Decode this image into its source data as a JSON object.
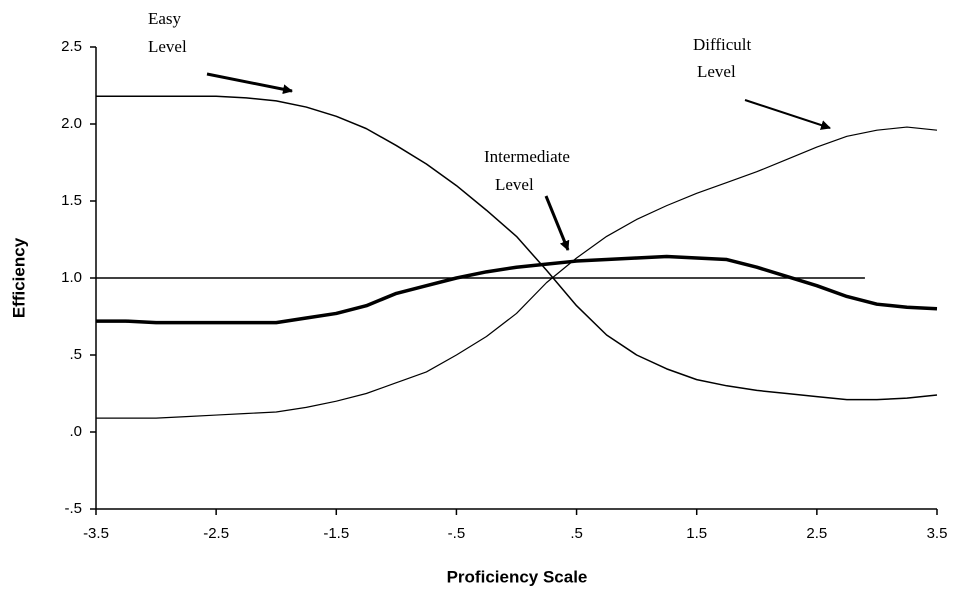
{
  "chart_data": {
    "type": "line",
    "x_label": "Proficiency Scale",
    "y_label": "Efficiency",
    "x": [
      -3.5,
      -3.25,
      -3,
      -2.75,
      -2.5,
      -2.25,
      -2,
      -1.75,
      -1.5,
      -1.25,
      -1,
      -0.75,
      -0.5,
      -0.25,
      0,
      0.25,
      0.5,
      0.75,
      1,
      1.25,
      1.5,
      1.75,
      2,
      2.25,
      2.5,
      2.75,
      3,
      3.25,
      3.5
    ],
    "series": [
      {
        "color": "#000",
        "width": 1.5,
        "values": [
          2.18,
          2.18,
          2.18,
          2.18,
          2.18,
          2.17,
          2.15,
          2.11,
          2.05,
          1.97,
          1.86,
          1.74,
          1.6,
          1.44,
          1.27,
          1.05,
          0.82,
          0.63,
          0.5,
          0.41,
          0.34,
          0.3,
          0.27,
          0.25,
          0.23,
          0.21,
          0.21,
          0.22,
          0.24
        ]
      },
      {
        "color": "#000",
        "width": 3.5,
        "values": [
          0.72,
          0.72,
          0.71,
          0.71,
          0.71,
          0.71,
          0.71,
          0.74,
          0.77,
          0.82,
          0.9,
          0.95,
          1.0,
          1.04,
          1.07,
          1.09,
          1.11,
          1.12,
          1.13,
          1.14,
          1.13,
          1.12,
          1.07,
          1.01,
          0.95,
          0.88,
          0.83,
          0.81,
          0.8
        ]
      },
      {
        "color": "#000",
        "width": 1.2,
        "values": [
          0.09,
          0.09,
          0.09,
          0.1,
          0.11,
          0.12,
          0.13,
          0.16,
          0.2,
          0.25,
          0.32,
          0.39,
          0.5,
          0.62,
          0.77,
          0.97,
          1.13,
          1.27,
          1.38,
          1.47,
          1.55,
          1.62,
          1.69,
          1.77,
          1.85,
          1.92,
          1.96,
          1.98,
          1.96
        ]
      }
    ],
    "reference_line": {
      "y": 1,
      "x": [
        -3.5,
        2.9
      ]
    },
    "annotations": [
      {
        "lines": [
          "Easy",
          "Level"
        ]
      },
      {
        "lines": [
          "Intermediate",
          "Level"
        ]
      },
      {
        "lines": [
          "Difficult",
          "Level"
        ]
      }
    ],
    "xlim": [
      -3.5,
      3.5
    ],
    "ylim": [
      -0.5,
      2.5
    ],
    "xticks": [
      -3.5,
      -2.5,
      -1.5,
      {
        "value": -0.5,
        "label": "-.5"
      },
      {
        "value": 0.5,
        "label": ".5"
      },
      1.5,
      2.5,
      3.5
    ],
    "yticks": [
      {
        "value": -0.5,
        "label": "-.5"
      },
      {
        "value": 0,
        "label": ".0"
      },
      {
        "value": 0.5,
        "label": ".5"
      },
      {
        "value": 1,
        "label": "1.0"
      },
      1.5,
      {
        "value": 2,
        "label": "2.0"
      },
      2.5
    ]
  }
}
